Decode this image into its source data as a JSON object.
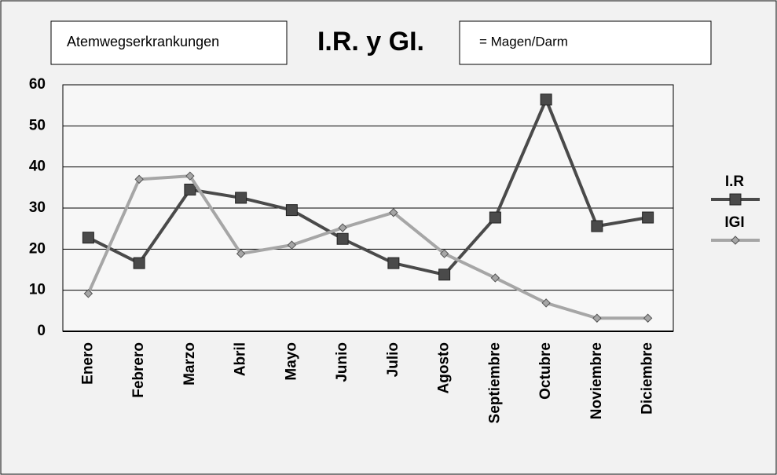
{
  "chart_data": {
    "type": "line",
    "title": "I.R. y GI.",
    "annotations": [
      "Atemwegserkrankungen",
      "= Magen/Darm"
    ],
    "categories": [
      "Enero",
      "Febrero",
      "Marzo",
      "Abril",
      "Mayo",
      "Junio",
      "Julio",
      "Agosto",
      "Septiembre",
      "Octubre",
      "Noviembre",
      "Diciembre"
    ],
    "series": [
      {
        "name": "I.R",
        "color": "#4a4a4a",
        "marker": "square",
        "values": [
          22.8,
          16.6,
          34.5,
          32.5,
          29.5,
          22.5,
          16.6,
          13.8,
          27.7,
          56.4,
          25.6,
          27.7
        ]
      },
      {
        "name": "IGI",
        "color": "#a6a6a6",
        "marker": "diamond",
        "values": [
          9.2,
          37,
          37.8,
          18.9,
          21,
          25.2,
          28.9,
          18.9,
          13,
          6.9,
          3.2,
          3.2
        ]
      }
    ],
    "ylim": [
      0,
      60
    ],
    "yticks": [
      0,
      10,
      20,
      30,
      40,
      50,
      60
    ],
    "grid": true,
    "legend": "right"
  }
}
